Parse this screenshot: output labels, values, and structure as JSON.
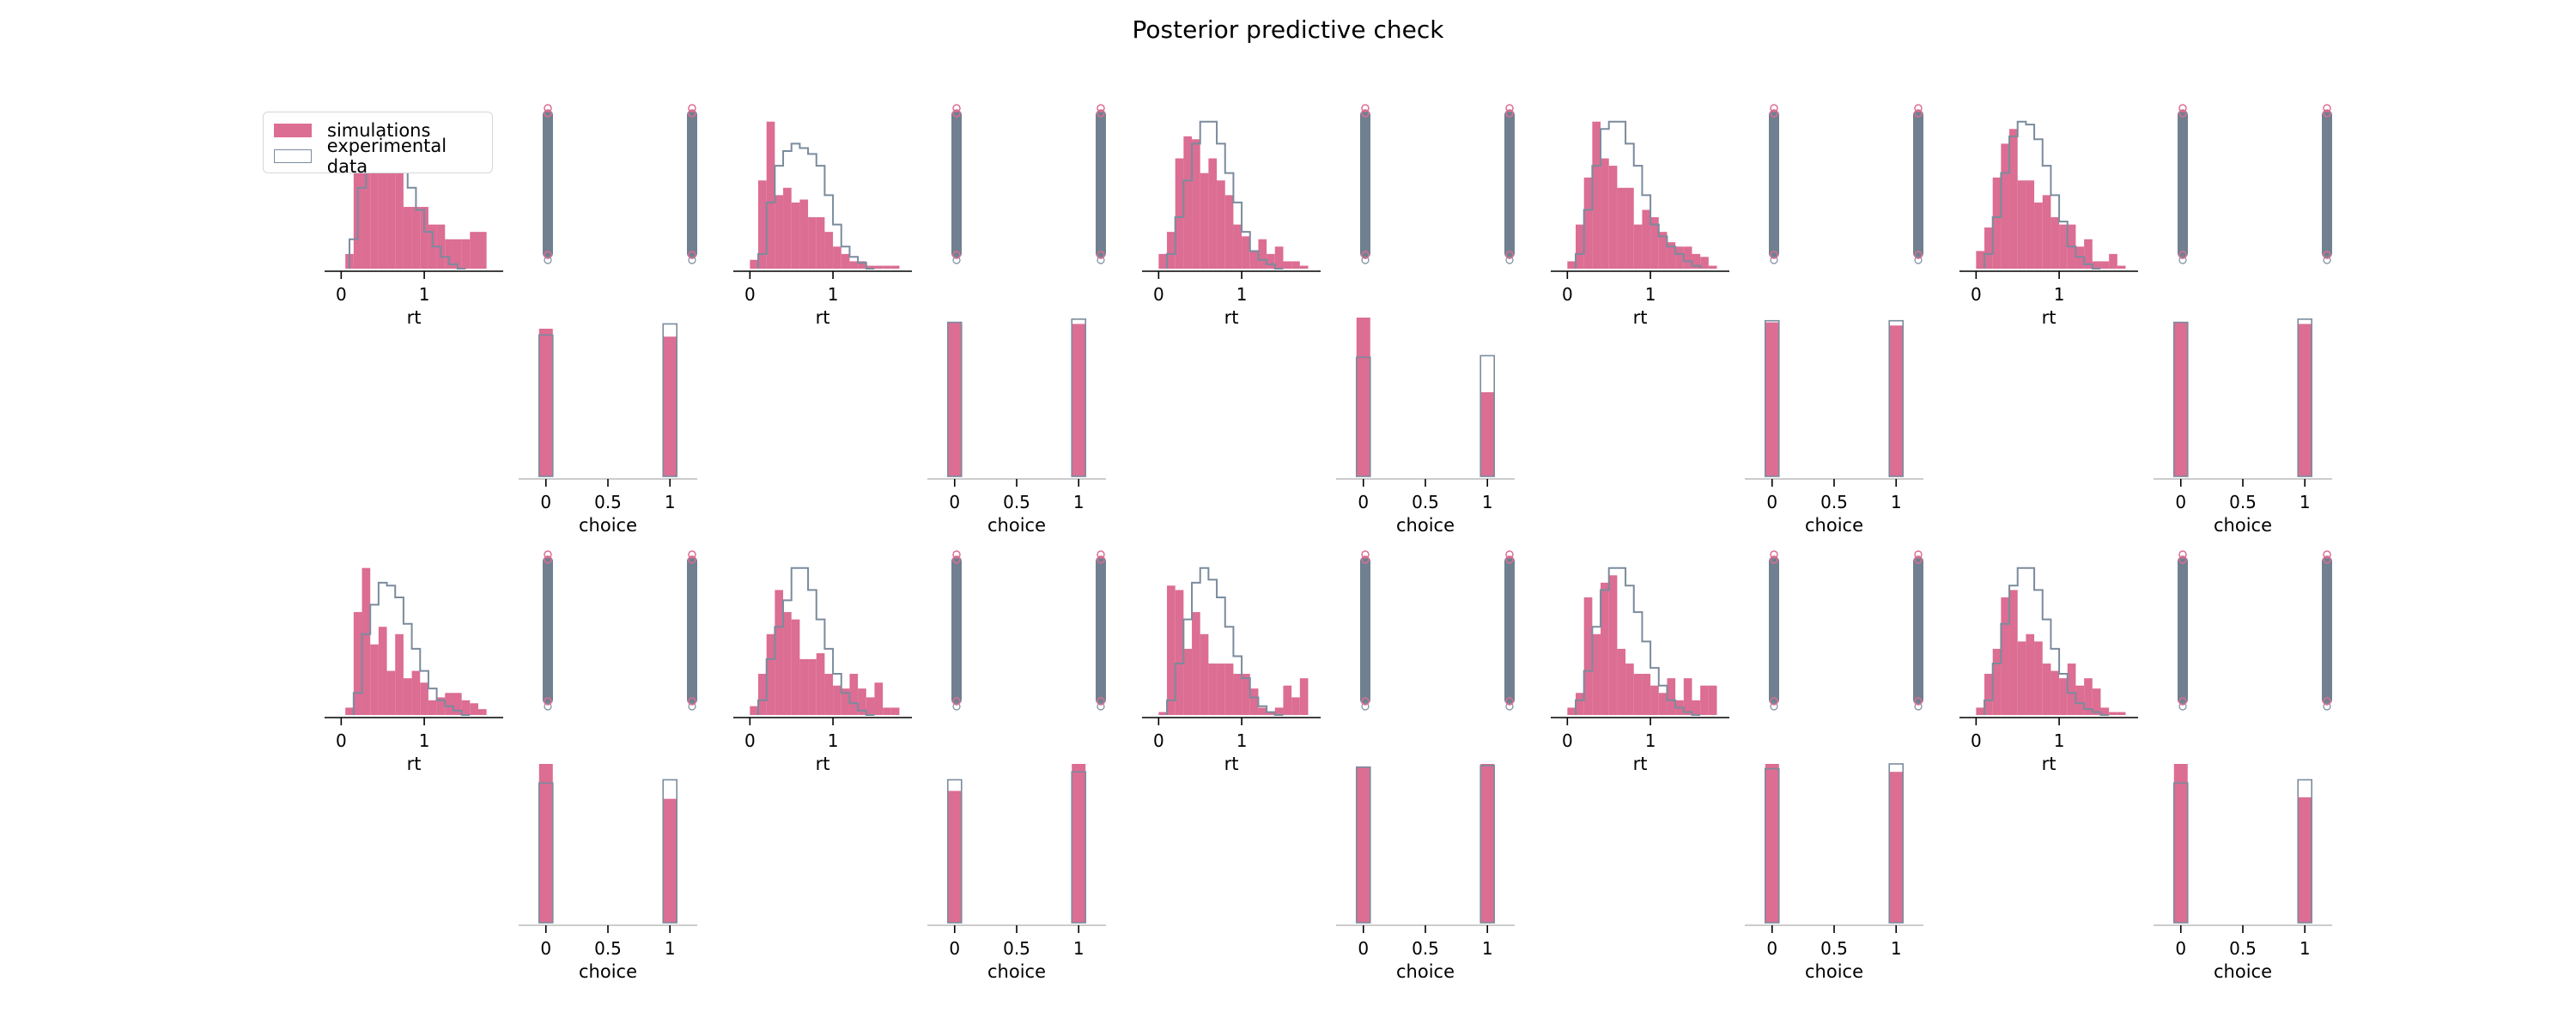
{
  "figure": {
    "title": "Posterior predictive check"
  },
  "legend": {
    "items": [
      {
        "label": "simulations",
        "style": "filled"
      },
      {
        "label": "experimental data",
        "style": "outline"
      }
    ]
  },
  "colors": {
    "simulations": "#dc6d93",
    "experimental": "#7b8b9d",
    "scatter": "#708090",
    "axis": "#000000",
    "choice_axis": "#bbbbbb"
  },
  "chart_data": [
    {
      "type": "histogram",
      "panel": "row1-rt-1",
      "variable": "rt",
      "xlabel": "rt",
      "xticks": [
        0,
        1
      ],
      "sim_edges": [
        -0.05,
        0.05,
        0.15,
        0.25,
        0.35,
        0.45,
        0.55,
        0.65,
        0.75,
        0.85,
        0.95,
        1.05,
        1.15,
        1.25,
        1.35,
        1.45,
        1.55,
        1.65,
        1.75
      ],
      "sim_density": [
        0,
        0.1,
        0.85,
        1.0,
        0.85,
        0.85,
        0.65,
        0.65,
        0.42,
        0.42,
        0.42,
        0.3,
        0.3,
        0.2,
        0.2,
        0.2,
        0.25,
        0.25
      ],
      "exp_edges": [
        0.1,
        0.2,
        0.3,
        0.4,
        0.5,
        0.6,
        0.7,
        0.8,
        0.9,
        1.0,
        1.1,
        1.2,
        1.3,
        1.4,
        1.5
      ],
      "exp_density": [
        0.2,
        0.55,
        0.85,
        0.95,
        0.92,
        0.88,
        0.75,
        0.55,
        0.4,
        0.25,
        0.15,
        0.08,
        0.03,
        0.0
      ],
      "ylim": [
        0,
        1.08
      ]
    },
    {
      "type": "scatter",
      "panel": "row1-scatter-1",
      "categories": [
        0,
        1
      ]
    },
    {
      "type": "histogram",
      "panel": "row1-rt-2",
      "variable": "rt",
      "xlabel": "rt",
      "xticks": [
        0,
        1
      ],
      "sim_edges": [
        0.0,
        0.1,
        0.2,
        0.3,
        0.4,
        0.5,
        0.6,
        0.7,
        0.8,
        0.9,
        1.0,
        1.1,
        1.2,
        1.3,
        1.4,
        1.5,
        1.6,
        1.7,
        1.8
      ],
      "sim_density": [
        0.06,
        0.6,
        1.0,
        0.5,
        0.55,
        0.45,
        0.47,
        0.35,
        0.35,
        0.25,
        0.15,
        0.1,
        0.05,
        0.05,
        0.02,
        0.02,
        0.02,
        0.02
      ],
      "exp_edges": [
        0.1,
        0.2,
        0.3,
        0.4,
        0.5,
        0.6,
        0.7,
        0.8,
        0.9,
        1.0,
        1.1,
        1.2,
        1.3,
        1.4,
        1.5
      ],
      "exp_density": [
        0.1,
        0.45,
        0.7,
        0.8,
        0.85,
        0.82,
        0.78,
        0.7,
        0.5,
        0.3,
        0.15,
        0.08,
        0.04,
        0.0
      ],
      "ylim": [
        0,
        1.08
      ]
    },
    {
      "type": "scatter",
      "panel": "row1-scatter-2",
      "categories": [
        0,
        1
      ]
    },
    {
      "type": "histogram",
      "panel": "row1-rt-3",
      "variable": "rt",
      "xlabel": "rt",
      "xticks": [
        0,
        1
      ],
      "sim_edges": [
        0.0,
        0.1,
        0.2,
        0.3,
        0.4,
        0.5,
        0.6,
        0.7,
        0.8,
        0.9,
        1.0,
        1.1,
        1.2,
        1.3,
        1.4,
        1.5,
        1.6,
        1.7,
        1.8
      ],
      "sim_density": [
        0.1,
        0.25,
        0.75,
        0.9,
        0.88,
        0.65,
        0.75,
        0.6,
        0.5,
        0.3,
        0.22,
        0.12,
        0.2,
        0.1,
        0.15,
        0.05,
        0.05,
        0.02
      ],
      "exp_edges": [
        0.1,
        0.2,
        0.3,
        0.4,
        0.5,
        0.6,
        0.7,
        0.8,
        0.9,
        1.0,
        1.1,
        1.2,
        1.3,
        1.4,
        1.5
      ],
      "exp_density": [
        0.1,
        0.35,
        0.6,
        0.85,
        1.0,
        1.0,
        0.85,
        0.65,
        0.45,
        0.25,
        0.12,
        0.06,
        0.03,
        0.0
      ],
      "ylim": [
        0,
        1.08
      ]
    },
    {
      "type": "scatter",
      "panel": "row1-scatter-3",
      "categories": [
        0,
        1
      ]
    },
    {
      "type": "histogram",
      "panel": "row1-rt-4",
      "variable": "rt",
      "xlabel": "rt",
      "xticks": [
        0,
        1
      ],
      "sim_edges": [
        0.0,
        0.1,
        0.2,
        0.3,
        0.4,
        0.5,
        0.6,
        0.7,
        0.8,
        0.9,
        1.0,
        1.1,
        1.2,
        1.3,
        1.4,
        1.5,
        1.6,
        1.7,
        1.8
      ],
      "sim_density": [
        0.05,
        0.3,
        0.62,
        1.0,
        0.75,
        0.7,
        0.55,
        0.55,
        0.3,
        0.4,
        0.35,
        0.25,
        0.18,
        0.15,
        0.15,
        0.1,
        0.08,
        0.02
      ],
      "exp_edges": [
        0.1,
        0.2,
        0.3,
        0.4,
        0.5,
        0.6,
        0.7,
        0.8,
        0.9,
        1.0,
        1.1,
        1.2,
        1.3,
        1.4,
        1.5,
        1.6
      ],
      "exp_density": [
        0.1,
        0.4,
        0.7,
        0.95,
        1.0,
        1.0,
        0.85,
        0.7,
        0.5,
        0.3,
        0.22,
        0.15,
        0.1,
        0.05,
        0.02
      ],
      "ylim": [
        0,
        1.08
      ]
    },
    {
      "type": "scatter",
      "panel": "row1-scatter-4",
      "categories": [
        0,
        1
      ]
    },
    {
      "type": "histogram",
      "panel": "row1-rt-5",
      "variable": "rt",
      "xlabel": "rt",
      "xticks": [
        0,
        1
      ],
      "sim_edges": [
        0.0,
        0.1,
        0.2,
        0.3,
        0.4,
        0.5,
        0.6,
        0.7,
        0.8,
        0.9,
        1.0,
        1.1,
        1.2,
        1.3,
        1.4,
        1.5,
        1.6,
        1.7,
        1.8
      ],
      "sim_density": [
        0.12,
        0.28,
        0.62,
        0.85,
        0.95,
        0.6,
        0.6,
        0.45,
        0.5,
        0.35,
        0.3,
        0.3,
        0.15,
        0.2,
        0.05,
        0.05,
        0.1,
        0.02
      ],
      "exp_edges": [
        0.1,
        0.2,
        0.3,
        0.4,
        0.5,
        0.6,
        0.7,
        0.8,
        0.9,
        1.0,
        1.1,
        1.2,
        1.3,
        1.4,
        1.5
      ],
      "exp_density": [
        0.1,
        0.35,
        0.65,
        0.9,
        1.0,
        0.98,
        0.88,
        0.7,
        0.5,
        0.32,
        0.15,
        0.08,
        0.03,
        0.0
      ],
      "ylim": [
        0,
        1.08
      ]
    },
    {
      "type": "scatter",
      "panel": "row1-scatter-5",
      "categories": [
        0,
        1
      ]
    },
    {
      "type": "histogram",
      "panel": "row2-choice-1",
      "variable": "choice",
      "xlabel": "choice",
      "xticks": [
        0,
        0.5,
        1
      ],
      "sim_bars": [
        {
          "x": 0,
          "value": 0.93
        },
        {
          "x": 1,
          "value": 0.88
        }
      ],
      "exp_bars": [
        {
          "x": 0,
          "value": 0.89
        },
        {
          "x": 1,
          "value": 0.96
        }
      ],
      "ylim": [
        0,
        1.0
      ]
    },
    {
      "type": "histogram",
      "panel": "row2-choice-2",
      "variable": "choice",
      "xlabel": "choice",
      "xticks": [
        0,
        0.5,
        1
      ],
      "sim_bars": [
        {
          "x": 0,
          "value": 0.97
        },
        {
          "x": 1,
          "value": 0.96
        }
      ],
      "exp_bars": [
        {
          "x": 0,
          "value": 0.97
        },
        {
          "x": 1,
          "value": 0.99
        }
      ],
      "ylim": [
        0,
        1.0
      ]
    },
    {
      "type": "histogram",
      "panel": "row2-choice-3",
      "variable": "choice",
      "xlabel": "choice",
      "xticks": [
        0,
        0.5,
        1
      ],
      "sim_bars": [
        {
          "x": 0,
          "value": 1.0
        },
        {
          "x": 1,
          "value": 0.53
        }
      ],
      "exp_bars": [
        {
          "x": 0,
          "value": 0.75
        },
        {
          "x": 1,
          "value": 0.76
        }
      ],
      "ylim": [
        0,
        1.0
      ]
    },
    {
      "type": "histogram",
      "panel": "row2-choice-4",
      "variable": "choice",
      "xlabel": "choice",
      "xticks": [
        0,
        0.5,
        1
      ],
      "sim_bars": [
        {
          "x": 0,
          "value": 0.97
        },
        {
          "x": 1,
          "value": 0.95
        }
      ],
      "exp_bars": [
        {
          "x": 0,
          "value": 0.98
        },
        {
          "x": 1,
          "value": 0.98
        }
      ],
      "ylim": [
        0,
        1.0
      ]
    },
    {
      "type": "histogram",
      "panel": "row2-choice-5",
      "variable": "choice",
      "xlabel": "choice",
      "xticks": [
        0,
        0.5,
        1
      ],
      "sim_bars": [
        {
          "x": 0,
          "value": 0.97
        },
        {
          "x": 1,
          "value": 0.96
        }
      ],
      "exp_bars": [
        {
          "x": 0,
          "value": 0.97
        },
        {
          "x": 1,
          "value": 0.99
        }
      ],
      "ylim": [
        0,
        1.0
      ]
    },
    {
      "type": "histogram",
      "panel": "row3-rt-1",
      "variable": "rt",
      "xlabel": "rt",
      "xticks": [
        0,
        1
      ],
      "sim_edges": [
        -0.05,
        0.05,
        0.15,
        0.25,
        0.35,
        0.45,
        0.55,
        0.65,
        0.75,
        0.85,
        0.95,
        1.05,
        1.15,
        1.25,
        1.35,
        1.45,
        1.55,
        1.65,
        1.75
      ],
      "sim_density": [
        0,
        0.05,
        0.7,
        1.0,
        0.48,
        0.6,
        0.3,
        0.55,
        0.25,
        0.3,
        0.22,
        0.1,
        0.12,
        0.15,
        0.15,
        0.1,
        0.08,
        0.04
      ],
      "exp_edges": [
        0.15,
        0.25,
        0.35,
        0.45,
        0.55,
        0.65,
        0.75,
        0.85,
        0.95,
        1.05,
        1.15,
        1.25,
        1.35,
        1.45,
        1.55
      ],
      "exp_density": [
        0.15,
        0.55,
        0.75,
        0.9,
        0.88,
        0.8,
        0.62,
        0.45,
        0.3,
        0.18,
        0.1,
        0.06,
        0.03,
        0.0
      ],
      "ylim": [
        0,
        1.08
      ]
    },
    {
      "type": "scatter",
      "panel": "row3-scatter-1",
      "categories": [
        0,
        1
      ]
    },
    {
      "type": "histogram",
      "panel": "row3-rt-2",
      "variable": "rt",
      "xlabel": "rt",
      "xticks": [
        0,
        1
      ],
      "sim_edges": [
        0.0,
        0.1,
        0.2,
        0.3,
        0.4,
        0.5,
        0.6,
        0.7,
        0.8,
        0.9,
        1.0,
        1.1,
        1.2,
        1.3,
        1.4,
        1.5,
        1.6,
        1.7,
        1.8
      ],
      "sim_density": [
        0.06,
        0.28,
        0.55,
        0.85,
        0.7,
        0.65,
        0.38,
        0.38,
        0.42,
        0.28,
        0.2,
        0.18,
        0.28,
        0.18,
        0.12,
        0.22,
        0.05,
        0.05
      ],
      "exp_edges": [
        0.1,
        0.2,
        0.3,
        0.4,
        0.5,
        0.6,
        0.7,
        0.8,
        0.9,
        1.0,
        1.1,
        1.2,
        1.3,
        1.4,
        1.5
      ],
      "exp_density": [
        0.1,
        0.38,
        0.6,
        0.78,
        1.0,
        1.0,
        0.85,
        0.65,
        0.45,
        0.28,
        0.15,
        0.08,
        0.03,
        0.0
      ],
      "ylim": [
        0,
        1.08
      ]
    },
    {
      "type": "scatter",
      "panel": "row3-scatter-2",
      "categories": [
        0,
        1
      ]
    },
    {
      "type": "histogram",
      "panel": "row3-rt-3",
      "variable": "rt",
      "xlabel": "rt",
      "xticks": [
        0,
        1
      ],
      "sim_edges": [
        0.0,
        0.1,
        0.2,
        0.3,
        0.4,
        0.5,
        0.6,
        0.7,
        0.8,
        0.9,
        1.0,
        1.1,
        1.2,
        1.3,
        1.4,
        1.5,
        1.6,
        1.7,
        1.8
      ],
      "sim_density": [
        0.02,
        0.88,
        0.85,
        0.45,
        0.7,
        0.55,
        0.35,
        0.35,
        0.35,
        0.28,
        0.28,
        0.18,
        0.05,
        0.02,
        0.05,
        0.2,
        0.12,
        0.25
      ],
      "exp_edges": [
        0.1,
        0.2,
        0.3,
        0.4,
        0.5,
        0.6,
        0.7,
        0.8,
        0.9,
        1.0,
        1.1,
        1.2,
        1.3,
        1.4,
        1.5
      ],
      "exp_density": [
        0.1,
        0.35,
        0.65,
        0.9,
        1.0,
        0.92,
        0.8,
        0.6,
        0.4,
        0.25,
        0.12,
        0.06,
        0.02,
        0.0
      ],
      "ylim": [
        0,
        1.08
      ]
    },
    {
      "type": "scatter",
      "panel": "row3-scatter-3",
      "categories": [
        0,
        1
      ]
    },
    {
      "type": "histogram",
      "panel": "row3-rt-4",
      "variable": "rt",
      "xlabel": "rt",
      "xticks": [
        0,
        1
      ],
      "sim_edges": [
        0.0,
        0.1,
        0.2,
        0.3,
        0.4,
        0.5,
        0.6,
        0.7,
        0.8,
        0.9,
        1.0,
        1.1,
        1.2,
        1.3,
        1.4,
        1.5,
        1.6,
        1.7,
        1.8
      ],
      "sim_density": [
        0.05,
        0.15,
        0.8,
        0.55,
        0.9,
        0.95,
        0.45,
        0.35,
        0.28,
        0.28,
        0.2,
        0.15,
        0.25,
        0.1,
        0.25,
        0.1,
        0.2,
        0.2
      ],
      "exp_edges": [
        0.1,
        0.2,
        0.3,
        0.4,
        0.5,
        0.6,
        0.7,
        0.8,
        0.9,
        1.0,
        1.1,
        1.2,
        1.3,
        1.4,
        1.5,
        1.6
      ],
      "exp_density": [
        0.1,
        0.3,
        0.6,
        0.85,
        1.0,
        1.0,
        0.88,
        0.7,
        0.5,
        0.32,
        0.2,
        0.1,
        0.05,
        0.02,
        0.0
      ],
      "ylim": [
        0,
        1.08
      ]
    },
    {
      "type": "scatter",
      "panel": "row3-scatter-4",
      "categories": [
        0,
        1
      ]
    },
    {
      "type": "histogram",
      "panel": "row3-rt-5",
      "variable": "rt",
      "xlabel": "rt",
      "xticks": [
        0,
        1
      ],
      "sim_edges": [
        0.0,
        0.1,
        0.2,
        0.3,
        0.4,
        0.5,
        0.6,
        0.7,
        0.8,
        0.9,
        1.0,
        1.1,
        1.2,
        1.3,
        1.4,
        1.5,
        1.6,
        1.7,
        1.8
      ],
      "sim_density": [
        0.05,
        0.28,
        0.45,
        0.8,
        0.85,
        0.5,
        0.55,
        0.5,
        0.35,
        0.3,
        0.25,
        0.35,
        0.2,
        0.25,
        0.18,
        0.05,
        0.02,
        0.02
      ],
      "exp_edges": [
        0.1,
        0.2,
        0.3,
        0.4,
        0.5,
        0.6,
        0.7,
        0.8,
        0.9,
        1.0,
        1.1,
        1.2,
        1.3,
        1.4,
        1.5,
        1.6
      ],
      "exp_density": [
        0.1,
        0.35,
        0.62,
        0.88,
        1.0,
        1.0,
        0.85,
        0.65,
        0.45,
        0.28,
        0.15,
        0.08,
        0.04,
        0.02,
        0.0
      ],
      "ylim": [
        0,
        1.08
      ]
    },
    {
      "type": "scatter",
      "panel": "row3-scatter-5",
      "categories": [
        0,
        1
      ]
    },
    {
      "type": "histogram",
      "panel": "row4-choice-1",
      "variable": "choice",
      "xlabel": "choice",
      "xticks": [
        0,
        0.5,
        1
      ],
      "sim_bars": [
        {
          "x": 0,
          "value": 1.0
        },
        {
          "x": 1,
          "value": 0.78
        }
      ],
      "exp_bars": [
        {
          "x": 0,
          "value": 0.88
        },
        {
          "x": 1,
          "value": 0.9
        }
      ],
      "ylim": [
        0,
        1.0
      ]
    },
    {
      "type": "histogram",
      "panel": "row4-choice-2",
      "variable": "choice",
      "xlabel": "choice",
      "xticks": [
        0,
        0.5,
        1
      ],
      "sim_bars": [
        {
          "x": 0,
          "value": 0.83
        },
        {
          "x": 1,
          "value": 1.0
        }
      ],
      "exp_bars": [
        {
          "x": 0,
          "value": 0.9
        },
        {
          "x": 1,
          "value": 0.95
        }
      ],
      "ylim": [
        0,
        1.0
      ]
    },
    {
      "type": "histogram",
      "panel": "row4-choice-3",
      "variable": "choice",
      "xlabel": "choice",
      "xticks": [
        0,
        0.5,
        1
      ],
      "sim_bars": [
        {
          "x": 0,
          "value": 0.98
        },
        {
          "x": 1,
          "value": 1.0
        }
      ],
      "exp_bars": [
        {
          "x": 0,
          "value": 0.98
        },
        {
          "x": 1,
          "value": 0.99
        }
      ],
      "ylim": [
        0,
        1.0
      ]
    },
    {
      "type": "histogram",
      "panel": "row4-choice-4",
      "variable": "choice",
      "xlabel": "choice",
      "xticks": [
        0,
        0.5,
        1
      ],
      "sim_bars": [
        {
          "x": 0,
          "value": 1.0
        },
        {
          "x": 1,
          "value": 0.95
        }
      ],
      "exp_bars": [
        {
          "x": 0,
          "value": 0.97
        },
        {
          "x": 1,
          "value": 1.0
        }
      ],
      "ylim": [
        0,
        1.0
      ]
    },
    {
      "type": "histogram",
      "panel": "row4-choice-5",
      "variable": "choice",
      "xlabel": "choice",
      "xticks": [
        0,
        0.5,
        1
      ],
      "sim_bars": [
        {
          "x": 0,
          "value": 1.0
        },
        {
          "x": 1,
          "value": 0.79
        }
      ],
      "exp_bars": [
        {
          "x": 0,
          "value": 0.88
        },
        {
          "x": 1,
          "value": 0.9
        }
      ],
      "ylim": [
        0,
        1.0
      ]
    }
  ]
}
